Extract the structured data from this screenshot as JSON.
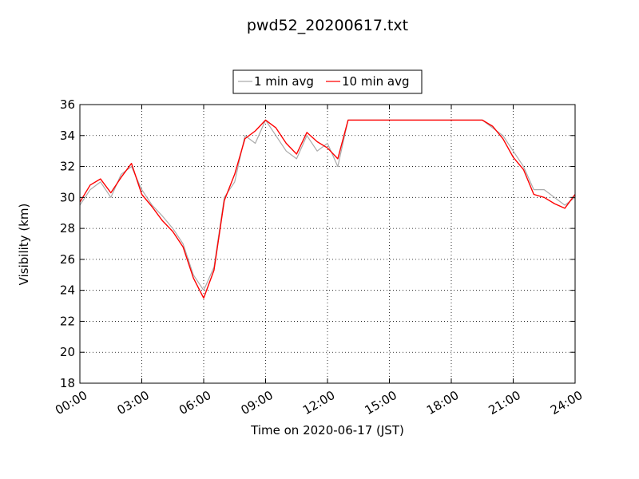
{
  "chart_data": {
    "type": "line",
    "title": "pwd52_20200617.txt",
    "xlabel": "Time on 2020-06-17 (JST)",
    "ylabel": "Visibility (km)",
    "xlim": [
      "00:00",
      "24:00"
    ],
    "ylim": [
      18,
      36
    ],
    "grid": true,
    "legend_position": "top-center",
    "x_ticks": [
      "00:00",
      "03:00",
      "06:00",
      "09:00",
      "12:00",
      "15:00",
      "18:00",
      "21:00",
      "24:00"
    ],
    "y_ticks": [
      "18",
      "20",
      "22",
      "24",
      "26",
      "28",
      "30",
      "32",
      "34",
      "36"
    ],
    "x": [
      "00:00",
      "00:30",
      "01:00",
      "01:30",
      "02:00",
      "02:30",
      "03:00",
      "03:30",
      "04:00",
      "04:30",
      "05:00",
      "05:30",
      "06:00",
      "06:30",
      "07:00",
      "07:30",
      "08:00",
      "08:30",
      "09:00",
      "09:30",
      "10:00",
      "10:30",
      "11:00",
      "11:30",
      "12:00",
      "12:30",
      "13:00",
      "13:30",
      "14:00",
      "14:30",
      "15:00",
      "15:30",
      "16:00",
      "16:30",
      "17:00",
      "17:30",
      "18:00",
      "18:30",
      "19:00",
      "19:30",
      "20:00",
      "20:30",
      "21:00",
      "21:30",
      "22:00",
      "22:30",
      "23:00",
      "23:30",
      "24:00"
    ],
    "series": [
      {
        "name": "1 min avg",
        "color": "#aaaaaa",
        "values": [
          29.5,
          30.5,
          31.0,
          30.0,
          31.5,
          32.0,
          30.5,
          29.5,
          28.8,
          28.0,
          27.0,
          25.0,
          24.0,
          25.5,
          30.0,
          31.0,
          34.0,
          33.5,
          35.0,
          34.0,
          33.0,
          32.5,
          34.0,
          33.0,
          33.5,
          32.0,
          35.0,
          35.0,
          35.0,
          35.0,
          35.0,
          35.0,
          35.0,
          35.0,
          35.0,
          35.0,
          35.0,
          35.0,
          35.0,
          35.0,
          34.5,
          34.0,
          33.0,
          32.0,
          30.5,
          30.5,
          30.0,
          29.5,
          30.0
        ]
      },
      {
        "name": "10 min avg",
        "color": "#ff0000",
        "values": [
          29.7,
          30.8,
          31.2,
          30.3,
          31.3,
          32.2,
          30.2,
          29.4,
          28.5,
          27.8,
          26.8,
          24.8,
          23.5,
          25.3,
          29.8,
          31.5,
          33.8,
          34.3,
          35.0,
          34.5,
          33.5,
          32.8,
          34.2,
          33.6,
          33.2,
          32.5,
          35.0,
          35.0,
          35.0,
          35.0,
          35.0,
          35.0,
          35.0,
          35.0,
          35.0,
          35.0,
          35.0,
          35.0,
          35.0,
          35.0,
          34.6,
          33.8,
          32.6,
          31.8,
          30.2,
          30.0,
          29.6,
          29.3,
          30.2
        ]
      }
    ]
  }
}
